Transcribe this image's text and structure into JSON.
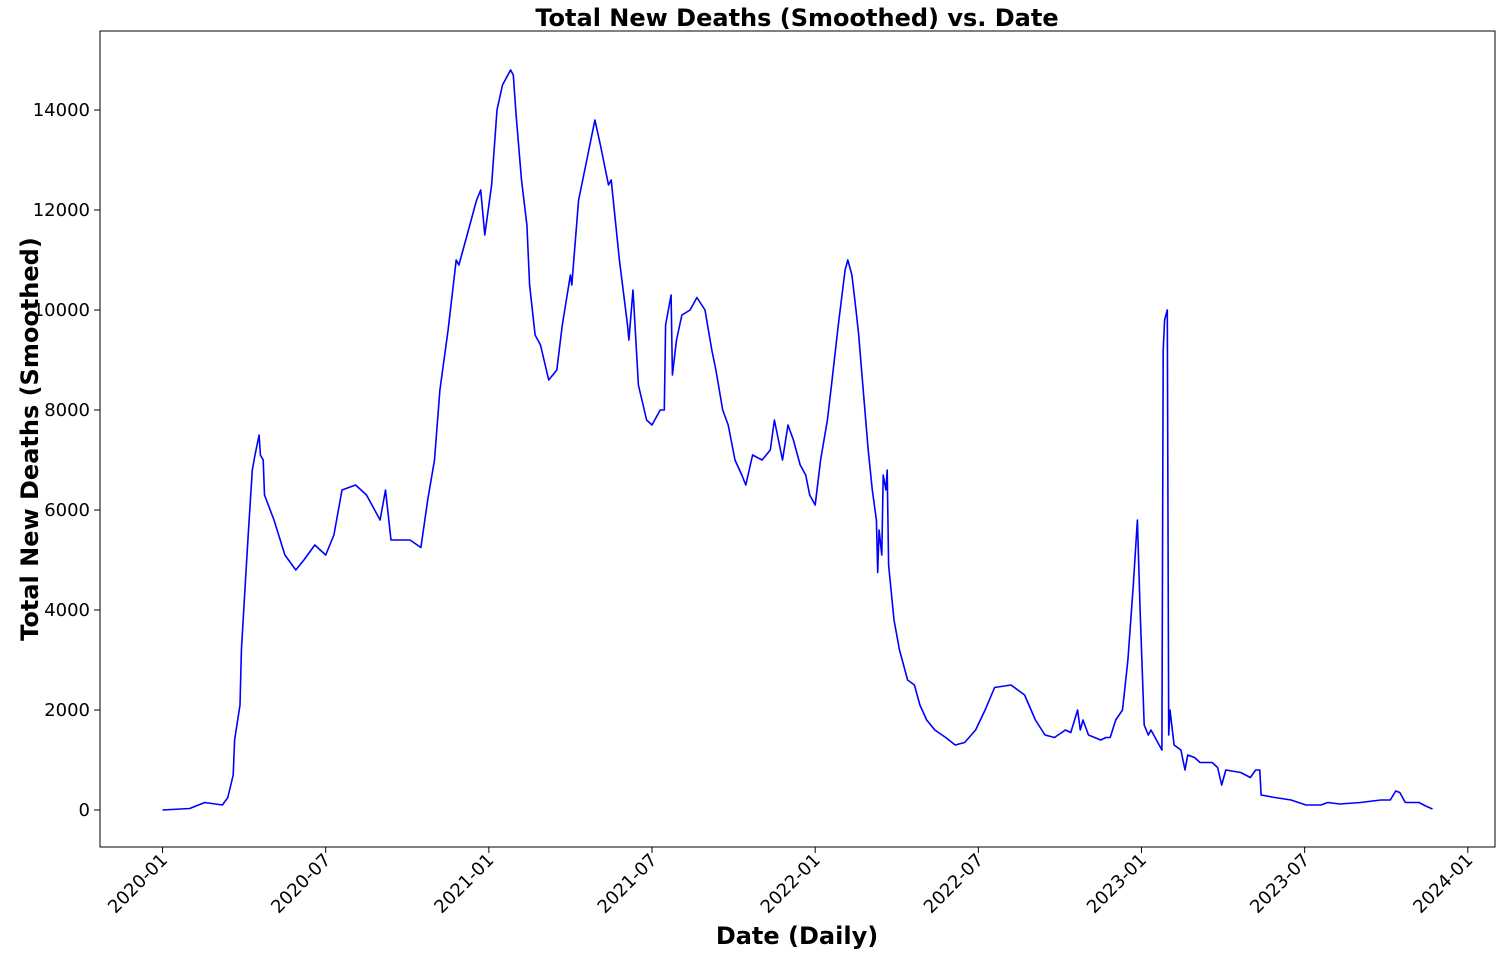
{
  "chart_data": {
    "type": "line",
    "title": "Total New Deaths (Smoothed) vs. Date",
    "x_label": "Date (Daily)",
    "y_label": "Total New Deaths (Smoothed)",
    "color": "#0000ff",
    "xlim": [
      -2.3,
      49.0
    ],
    "xticks": [
      {
        "value": 0,
        "label": "2020-01"
      },
      {
        "value": 6,
        "label": "2020-07"
      },
      {
        "value": 12,
        "label": "2021-01"
      },
      {
        "value": 18,
        "label": "2021-07"
      },
      {
        "value": 24,
        "label": "2022-01"
      },
      {
        "value": 30,
        "label": "2022-07"
      },
      {
        "value": 36,
        "label": "2023-01"
      },
      {
        "value": 42,
        "label": "2023-07"
      },
      {
        "value": 48,
        "label": "2024-01"
      }
    ],
    "ylim": [
      -740,
      15580
    ],
    "yticks": [
      0,
      2000,
      4000,
      6000,
      8000,
      10000,
      12000,
      14000
    ],
    "x": [
      0,
      1.0,
      1.55,
      2.2,
      2.4,
      2.6,
      2.65,
      2.85,
      2.9,
      3.05,
      3.15,
      3.3,
      3.4,
      3.55,
      3.6,
      3.7,
      3.75,
      4.1,
      4.5,
      4.9,
      5.2,
      5.6,
      6.0,
      6.3,
      6.6,
      7.1,
      7.5,
      8.0,
      8.2,
      8.4,
      9.1,
      9.5,
      9.75,
      10.0,
      10.2,
      10.5,
      10.8,
      10.9,
      11.2,
      11.55,
      11.7,
      11.85,
      12.1,
      12.3,
      12.5,
      12.8,
      12.9,
      13.0,
      13.2,
      13.4,
      13.5,
      13.7,
      13.9,
      14.2,
      14.5,
      14.7,
      15.0,
      15.05,
      15.3,
      15.6,
      15.9,
      16.1,
      16.4,
      16.5,
      16.8,
      17.1,
      17.15,
      17.3,
      17.5,
      17.8,
      18.0,
      18.3,
      18.45,
      18.5,
      18.7,
      18.75,
      18.9,
      19.1,
      19.4,
      19.65,
      19.95,
      20.2,
      20.35,
      20.6,
      20.8,
      21.05,
      21.3,
      21.45,
      21.7,
      22.05,
      22.35,
      22.5,
      22.8,
      23.0,
      23.2,
      23.45,
      23.65,
      23.8,
      24.0,
      24.2,
      24.45,
      24.6,
      24.85,
      25.1,
      25.2,
      25.35,
      25.5,
      25.6,
      25.75,
      25.95,
      26.1,
      26.25,
      26.3,
      26.35,
      26.45,
      26.5,
      26.6,
      26.65,
      26.7,
      26.9,
      27.1,
      27.4,
      27.65,
      27.85,
      28.1,
      28.4,
      28.8,
      29.15,
      29.5,
      29.9,
      30.25,
      30.6,
      31.2,
      31.7,
      32.1,
      32.45,
      32.8,
      33.2,
      33.4,
      33.65,
      33.75,
      33.85,
      34.05,
      34.5,
      34.7,
      34.85,
      35.05,
      35.3,
      35.5,
      35.7,
      35.85,
      35.95,
      36.1,
      36.25,
      36.35,
      36.6,
      36.75,
      36.8,
      36.85,
      36.95,
      37.0,
      37.05,
      37.2,
      37.45,
      37.6,
      37.7,
      37.95,
      38.15,
      38.6,
      38.8,
      38.95,
      39.1,
      39.65,
      40.0,
      40.2,
      40.35,
      40.4,
      40.9,
      41.5,
      42.05,
      42.6,
      42.85,
      43.3,
      44.05,
      44.8,
      45.15,
      45.35,
      45.5,
      45.7,
      46.2,
      46.45,
      46.7
    ],
    "values": [
      0,
      30,
      150,
      100,
      250,
      700,
      1400,
      2100,
      3200,
      4600,
      5500,
      6800,
      7100,
      7500,
      7100,
      7000,
      6300,
      5800,
      5100,
      4800,
      5000,
      5300,
      5100,
      5500,
      6400,
      6500,
      6300,
      5800,
      6400,
      5400,
      5400,
      5250,
      6200,
      7000,
      8400,
      9600,
      11000,
      10900,
      11500,
      12200,
      12400,
      11500,
      12500,
      14000,
      14500,
      14800,
      14700,
      13900,
      12600,
      11700,
      10500,
      9500,
      9300,
      8600,
      8800,
      9700,
      10700,
      10500,
      12200,
      13000,
      13800,
      13300,
      12500,
      12600,
      11000,
      9700,
      9400,
      10400,
      8500,
      7800,
      7700,
      8000,
      8000,
      9700,
      10300,
      8700,
      9400,
      9900,
      10000,
      10250,
      10000,
      9200,
      8800,
      8000,
      7700,
      7000,
      6700,
      6500,
      7100,
      7000,
      7200,
      7800,
      7000,
      7700,
      7400,
      6900,
      6700,
      6300,
      6100,
      7000,
      7800,
      8500,
      9700,
      10800,
      11000,
      10700,
      10000,
      9500,
      8500,
      7200,
      6400,
      5800,
      4750,
      5600,
      5100,
      6700,
      6400,
      6800,
      4900,
      3800,
      3200,
      2600,
      2500,
      2100,
      1800,
      1600,
      1450,
      1300,
      1350,
      1600,
      2000,
      2450,
      2500,
      2300,
      1800,
      1500,
      1450,
      1600,
      1550,
      2000,
      1600,
      1800,
      1500,
      1400,
      1450,
      1450,
      1800,
      2000,
      3000,
      4500,
      5800,
      4000,
      1700,
      1500,
      1600,
      1350,
      1200,
      9200,
      9800,
      10000,
      1500,
      2000,
      1300,
      1200,
      800,
      1100,
      1050,
      950,
      950,
      850,
      500,
      800,
      750,
      650,
      800,
      800,
      300,
      250,
      200,
      100,
      100,
      150,
      120,
      150,
      200,
      200,
      380,
      350,
      150,
      150,
      80,
      20
    ]
  }
}
